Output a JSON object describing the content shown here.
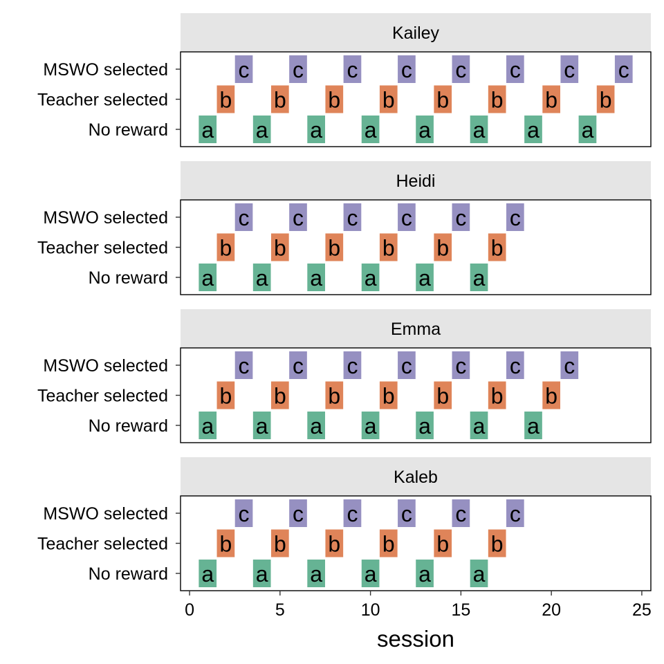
{
  "chart_data": {
    "type": "tile",
    "xlabel": "session",
    "xlim": [
      -0.5,
      25.5
    ],
    "x_ticks": [
      0,
      5,
      10,
      15,
      20,
      25
    ],
    "categories": [
      "No reward",
      "Teacher selected",
      "MSWO selected"
    ],
    "category_letters": [
      "a",
      "b",
      "c"
    ],
    "colors": {
      "No reward": "#66b394",
      "Teacher selected": "#df8459",
      "MSWO selected": "#9690c1",
      "strip_background": "#e5e5e5",
      "panel_border": "#000000"
    },
    "panels": [
      {
        "name": "Kailey",
        "points": [
          {
            "session": 1,
            "condition": "No reward"
          },
          {
            "session": 2,
            "condition": "Teacher selected"
          },
          {
            "session": 3,
            "condition": "MSWO selected"
          },
          {
            "session": 4,
            "condition": "No reward"
          },
          {
            "session": 5,
            "condition": "Teacher selected"
          },
          {
            "session": 6,
            "condition": "MSWO selected"
          },
          {
            "session": 7,
            "condition": "No reward"
          },
          {
            "session": 8,
            "condition": "Teacher selected"
          },
          {
            "session": 9,
            "condition": "MSWO selected"
          },
          {
            "session": 10,
            "condition": "No reward"
          },
          {
            "session": 11,
            "condition": "Teacher selected"
          },
          {
            "session": 12,
            "condition": "MSWO selected"
          },
          {
            "session": 13,
            "condition": "No reward"
          },
          {
            "session": 14,
            "condition": "Teacher selected"
          },
          {
            "session": 15,
            "condition": "MSWO selected"
          },
          {
            "session": 16,
            "condition": "No reward"
          },
          {
            "session": 17,
            "condition": "Teacher selected"
          },
          {
            "session": 18,
            "condition": "MSWO selected"
          },
          {
            "session": 19,
            "condition": "No reward"
          },
          {
            "session": 20,
            "condition": "Teacher selected"
          },
          {
            "session": 21,
            "condition": "MSWO selected"
          },
          {
            "session": 22,
            "condition": "No reward"
          },
          {
            "session": 23,
            "condition": "Teacher selected"
          },
          {
            "session": 24,
            "condition": "MSWO selected"
          }
        ]
      },
      {
        "name": "Heidi",
        "points": [
          {
            "session": 1,
            "condition": "No reward"
          },
          {
            "session": 2,
            "condition": "Teacher selected"
          },
          {
            "session": 3,
            "condition": "MSWO selected"
          },
          {
            "session": 4,
            "condition": "No reward"
          },
          {
            "session": 5,
            "condition": "Teacher selected"
          },
          {
            "session": 6,
            "condition": "MSWO selected"
          },
          {
            "session": 7,
            "condition": "No reward"
          },
          {
            "session": 8,
            "condition": "Teacher selected"
          },
          {
            "session": 9,
            "condition": "MSWO selected"
          },
          {
            "session": 10,
            "condition": "No reward"
          },
          {
            "session": 11,
            "condition": "Teacher selected"
          },
          {
            "session": 12,
            "condition": "MSWO selected"
          },
          {
            "session": 13,
            "condition": "No reward"
          },
          {
            "session": 14,
            "condition": "Teacher selected"
          },
          {
            "session": 15,
            "condition": "MSWO selected"
          },
          {
            "session": 16,
            "condition": "No reward"
          },
          {
            "session": 17,
            "condition": "Teacher selected"
          },
          {
            "session": 18,
            "condition": "MSWO selected"
          }
        ]
      },
      {
        "name": "Emma",
        "points": [
          {
            "session": 1,
            "condition": "No reward"
          },
          {
            "session": 2,
            "condition": "Teacher selected"
          },
          {
            "session": 3,
            "condition": "MSWO selected"
          },
          {
            "session": 4,
            "condition": "No reward"
          },
          {
            "session": 5,
            "condition": "Teacher selected"
          },
          {
            "session": 6,
            "condition": "MSWO selected"
          },
          {
            "session": 7,
            "condition": "No reward"
          },
          {
            "session": 8,
            "condition": "Teacher selected"
          },
          {
            "session": 9,
            "condition": "MSWO selected"
          },
          {
            "session": 10,
            "condition": "No reward"
          },
          {
            "session": 11,
            "condition": "Teacher selected"
          },
          {
            "session": 12,
            "condition": "MSWO selected"
          },
          {
            "session": 13,
            "condition": "No reward"
          },
          {
            "session": 14,
            "condition": "Teacher selected"
          },
          {
            "session": 15,
            "condition": "MSWO selected"
          },
          {
            "session": 16,
            "condition": "No reward"
          },
          {
            "session": 17,
            "condition": "Teacher selected"
          },
          {
            "session": 18,
            "condition": "MSWO selected"
          },
          {
            "session": 19,
            "condition": "No reward"
          },
          {
            "session": 20,
            "condition": "Teacher selected"
          },
          {
            "session": 21,
            "condition": "MSWO selected"
          }
        ]
      },
      {
        "name": "Kaleb",
        "points": [
          {
            "session": 1,
            "condition": "No reward"
          },
          {
            "session": 2,
            "condition": "Teacher selected"
          },
          {
            "session": 3,
            "condition": "MSWO selected"
          },
          {
            "session": 4,
            "condition": "No reward"
          },
          {
            "session": 5,
            "condition": "Teacher selected"
          },
          {
            "session": 6,
            "condition": "MSWO selected"
          },
          {
            "session": 7,
            "condition": "No reward"
          },
          {
            "session": 8,
            "condition": "Teacher selected"
          },
          {
            "session": 9,
            "condition": "MSWO selected"
          },
          {
            "session": 10,
            "condition": "No reward"
          },
          {
            "session": 11,
            "condition": "Teacher selected"
          },
          {
            "session": 12,
            "condition": "MSWO selected"
          },
          {
            "session": 13,
            "condition": "No reward"
          },
          {
            "session": 14,
            "condition": "Teacher selected"
          },
          {
            "session": 15,
            "condition": "MSWO selected"
          },
          {
            "session": 16,
            "condition": "No reward"
          },
          {
            "session": 17,
            "condition": "Teacher selected"
          },
          {
            "session": 18,
            "condition": "MSWO selected"
          }
        ]
      }
    ]
  }
}
